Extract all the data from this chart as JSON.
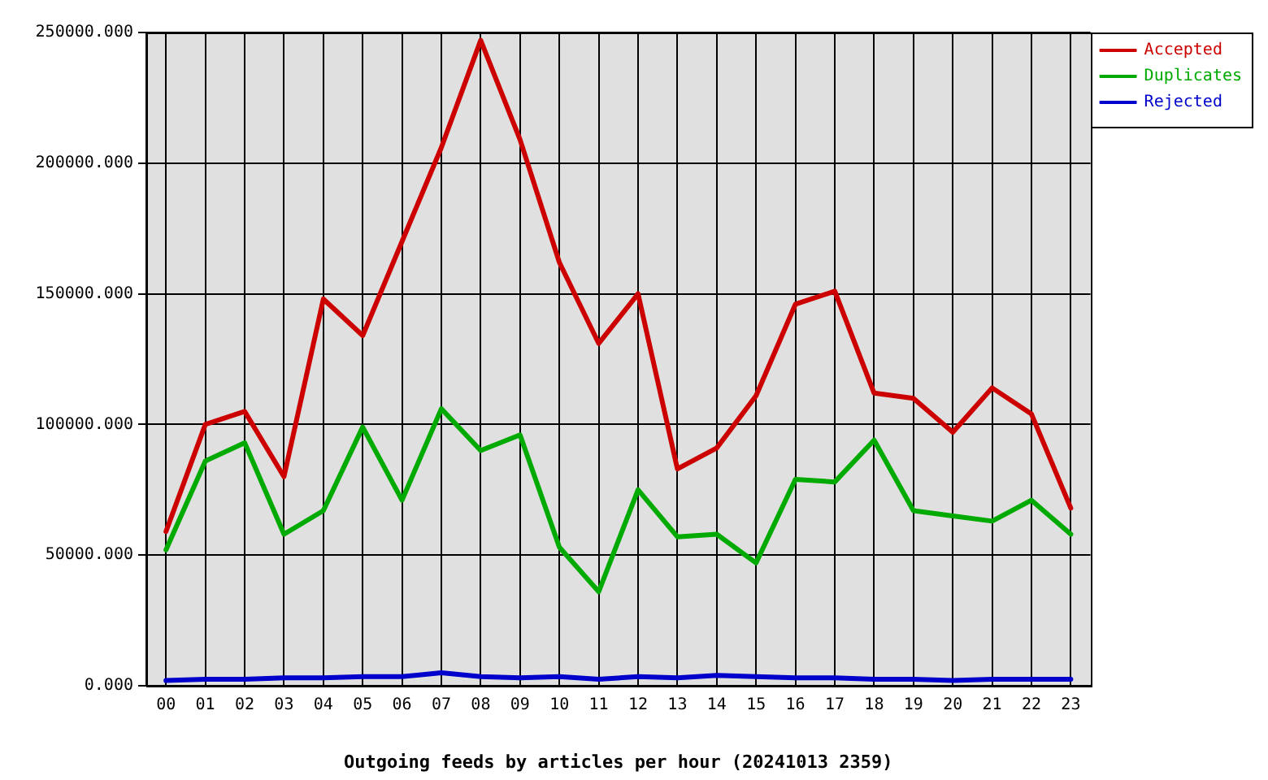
{
  "chart_data": {
    "type": "line",
    "xlabel": "Outgoing feeds by articles per hour (20241013 2359)",
    "categories": [
      "00",
      "01",
      "02",
      "03",
      "04",
      "05",
      "06",
      "07",
      "08",
      "09",
      "10",
      "11",
      "12",
      "13",
      "14",
      "15",
      "16",
      "17",
      "18",
      "19",
      "20",
      "21",
      "22",
      "23"
    ],
    "series": [
      {
        "name": "Accepted",
        "color": "#cc0000",
        "values": [
          59000,
          100000,
          105000,
          80000,
          148000,
          134000,
          170000,
          206000,
          247000,
          209000,
          162000,
          131000,
          150000,
          83000,
          91000,
          111000,
          146000,
          151000,
          112000,
          110000,
          97000,
          114000,
          104000,
          68000
        ]
      },
      {
        "name": "Duplicates",
        "color": "#00aa00",
        "values": [
          52000,
          86000,
          93000,
          58000,
          67000,
          99000,
          71000,
          106000,
          90000,
          96000,
          53000,
          36000,
          75000,
          57000,
          58000,
          47000,
          79000,
          78000,
          94000,
          67000,
          65000,
          63000,
          71000,
          58000
        ]
      },
      {
        "name": "Rejected",
        "color": "#0000cc",
        "values": [
          2000,
          2500,
          2500,
          3000,
          3000,
          3500,
          3500,
          5000,
          3500,
          3000,
          3500,
          2500,
          3500,
          3000,
          4000,
          3500,
          3000,
          3000,
          2500,
          2500,
          2000,
          2500,
          2500,
          2500
        ]
      }
    ],
    "ylim": [
      0,
      250000
    ],
    "yticks": [
      {
        "value": 0,
        "label": "0.000"
      },
      {
        "value": 50000,
        "label": "50000.000"
      },
      {
        "value": 100000,
        "label": "100000.000"
      },
      {
        "value": 150000,
        "label": "150000.000"
      },
      {
        "value": 200000,
        "label": "200000.000"
      },
      {
        "value": 250000,
        "label": "250000.000"
      }
    ],
    "grid": true,
    "legend": "top right",
    "marker": "none",
    "line_style": "solid"
  }
}
